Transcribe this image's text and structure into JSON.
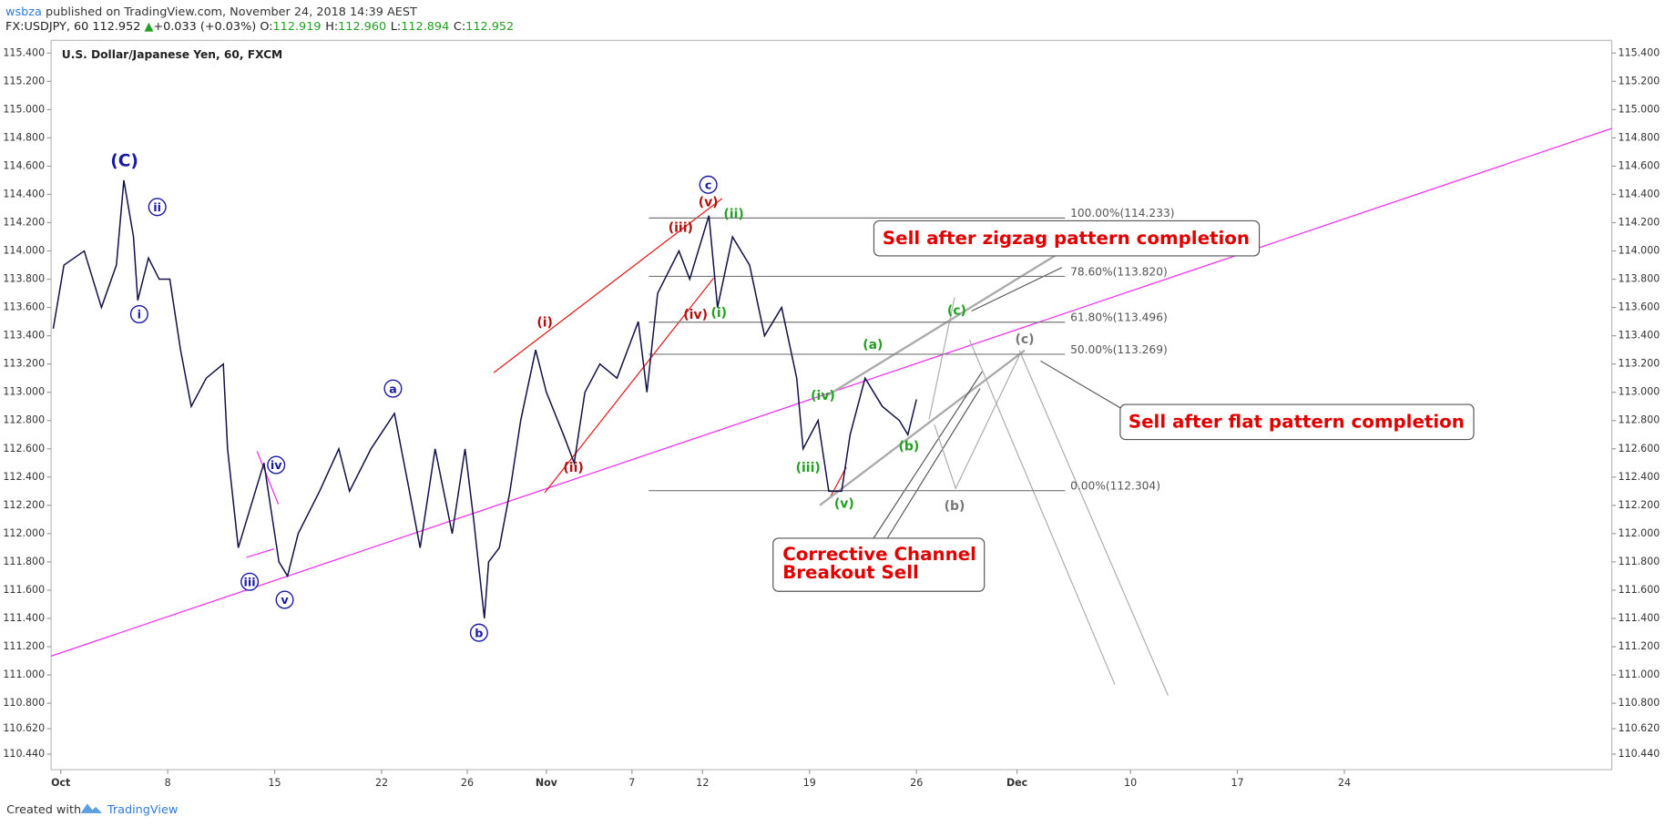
{
  "header": {
    "author": "wsbza",
    "published": "published on TradingView.com, November 24, 2018 14:39 AEST",
    "symbol": "FX:USDJPY, 60",
    "last": "112.952",
    "change": "+0.033 (+0.03%)",
    "ohlc": [
      {
        "label": "O:",
        "value": "112.919"
      },
      {
        "label": "H:",
        "value": "112.960"
      },
      {
        "label": "L:",
        "value": "112.894"
      },
      {
        "label": "C:",
        "value": "112.952"
      }
    ]
  },
  "footer": {
    "created": "Created with",
    "brand": "TradingView"
  },
  "chart_data": {
    "type": "line",
    "title": "U.S. Dollar/Japanese Yen, 60, FXCM",
    "x": [
      -0.35,
      0.15,
      1.1,
      1.9,
      2.6,
      2.95,
      3.4,
      3.6,
      4.1,
      4.6,
      5.1,
      5.6,
      6.1,
      6.8,
      7.6,
      7.8,
      8.3,
      9.1,
      9.5,
      9.8,
      10.2,
      10.6,
      11.1,
      12.1,
      13.0,
      13.5,
      14.5,
      15.6,
      16.3,
      16.8,
      17.5,
      18.3,
      18.9,
      19.3,
      19.8,
      20.0,
      20.5,
      21.0,
      21.5,
      22.2,
      22.7,
      23.5,
      24.0,
      24.5,
      25.2,
      26.0,
      27.0,
      27.4,
      27.9,
      28.9,
      29.4,
      30.3,
      30.7,
      31.4,
      32.2,
      32.9,
      33.7,
      34.4,
      34.7,
      35.4,
      35.9,
      36.5,
      36.9,
      37.6,
      38.4,
      39.2,
      39.6,
      40.0
    ],
    "series": [
      {
        "name": "USDJPY",
        "color": "#131346",
        "values": [
          113.45,
          113.9,
          114.0,
          113.6,
          113.9,
          114.5,
          114.1,
          113.65,
          113.95,
          113.8,
          113.8,
          113.3,
          112.9,
          113.1,
          113.2,
          112.6,
          111.9,
          112.3,
          112.5,
          112.2,
          111.8,
          111.7,
          112.0,
          112.3,
          112.6,
          112.3,
          112.6,
          112.85,
          112.3,
          111.9,
          112.6,
          112.0,
          112.6,
          112.1,
          111.4,
          111.8,
          111.9,
          112.3,
          112.8,
          113.3,
          113.0,
          112.7,
          112.5,
          113.0,
          113.2,
          113.1,
          113.5,
          113.0,
          113.7,
          114.0,
          113.8,
          114.25,
          113.6,
          114.1,
          113.9,
          113.4,
          113.6,
          113.1,
          112.6,
          112.8,
          112.3,
          112.3,
          112.7,
          113.1,
          112.9,
          112.8,
          112.7,
          112.95
        ]
      }
    ],
    "xlim": [
      -0.45,
      72.5
    ],
    "xticks": [
      {
        "value": 0,
        "label": "Oct"
      },
      {
        "value": 5,
        "label": "8"
      },
      {
        "value": 10,
        "label": "15"
      },
      {
        "value": 15,
        "label": "22"
      },
      {
        "value": 19,
        "label": "26"
      },
      {
        "value": 22.7,
        "label": "Nov"
      },
      {
        "value": 26.7,
        "label": "7"
      },
      {
        "value": 30,
        "label": "12"
      },
      {
        "value": 35,
        "label": "19"
      },
      {
        "value": 40,
        "label": "26"
      },
      {
        "value": 44.7,
        "label": "Dec"
      },
      {
        "value": 50,
        "label": "10"
      },
      {
        "value": 55,
        "label": "17"
      },
      {
        "value": 60,
        "label": "24"
      }
    ],
    "ylim": [
      110.33,
      115.49
    ],
    "yticks": [
      {
        "value": 115.4,
        "label": "115.400"
      },
      {
        "value": 115.2,
        "label": "115.200"
      },
      {
        "value": 115.0,
        "label": "115.000"
      },
      {
        "value": 114.8,
        "label": "114.800"
      },
      {
        "value": 114.6,
        "label": "114.600"
      },
      {
        "value": 114.4,
        "label": "114.400"
      },
      {
        "value": 114.2,
        "label": "114.200"
      },
      {
        "value": 114.0,
        "label": "114.000"
      },
      {
        "value": 113.8,
        "label": "113.800"
      },
      {
        "value": 113.6,
        "label": "113.600"
      },
      {
        "value": 113.4,
        "label": "113.400"
      },
      {
        "value": 113.2,
        "label": "113.200"
      },
      {
        "value": 113.0,
        "label": "113.000"
      },
      {
        "value": 112.8,
        "label": "112.800"
      },
      {
        "value": 112.6,
        "label": "112.600"
      },
      {
        "value": 112.4,
        "label": "112.400"
      },
      {
        "value": 112.2,
        "label": "112.200"
      },
      {
        "value": 112.0,
        "label": "112.000"
      },
      {
        "value": 111.8,
        "label": "111.800"
      },
      {
        "value": 111.6,
        "label": "111.600"
      },
      {
        "value": 111.4,
        "label": "111.400"
      },
      {
        "value": 111.2,
        "label": "111.200"
      },
      {
        "value": 111.0,
        "label": "111.000"
      },
      {
        "value": 110.8,
        "label": "110.800"
      },
      {
        "value": 110.62,
        "label": "110.620"
      },
      {
        "value": 110.44,
        "label": "110.440"
      }
    ],
    "fib_levels": [
      {
        "value": 114.233,
        "label": "100.00%(114.233)"
      },
      {
        "value": 113.82,
        "label": "78.60%(113.820)"
      },
      {
        "value": 113.496,
        "label": "61.80%(113.496)"
      },
      {
        "value": 113.269,
        "label": "50.00%(113.269)"
      },
      {
        "value": 112.304,
        "label": "0.00%(112.304)"
      }
    ],
    "annotations": [
      {
        "text": "(C)",
        "color": "#1a1aa0"
      },
      {
        "text": "ii",
        "color": "#1a1aa0"
      },
      {
        "text": "i",
        "color": "#1a1aa0"
      },
      {
        "text": "iii",
        "color": "#1a1aa0"
      },
      {
        "text": "iv",
        "color": "#1a1aa0"
      },
      {
        "text": "v",
        "color": "#1a1aa0"
      },
      {
        "text": "a",
        "color": "#1a1aa0"
      },
      {
        "text": "b",
        "color": "#1a1aa0"
      },
      {
        "text": "c",
        "color": "#1a1aa0"
      },
      {
        "text": "(i)",
        "color": "#b01010"
      },
      {
        "text": "(ii)",
        "color": "#b01010"
      },
      {
        "text": "(iii)",
        "color": "#b01010"
      },
      {
        "text": "(iv)",
        "color": "#b01010"
      },
      {
        "text": "(v)",
        "color": "#b01010"
      },
      {
        "text": "(i)",
        "color": "#22a022"
      },
      {
        "text": "(ii)",
        "color": "#22a022"
      },
      {
        "text": "(iii)",
        "color": "#22a022"
      },
      {
        "text": "(iv)",
        "color": "#22a022"
      },
      {
        "text": "(v)",
        "color": "#22a022"
      },
      {
        "text": "(a)",
        "color": "#22a022"
      },
      {
        "text": "(b)",
        "color": "#22a022"
      },
      {
        "text": "(c)",
        "color": "#22a022"
      },
      {
        "text": "(b)",
        "color": "#777777"
      },
      {
        "text": "(c)",
        "color": "#777777"
      }
    ],
    "callouts": [
      [
        "Sell after zigzag pattern completion"
      ],
      [
        "Sell after flat pattern completion"
      ],
      [
        "Corrective Channel",
        "Breakout Sell"
      ]
    ]
  }
}
